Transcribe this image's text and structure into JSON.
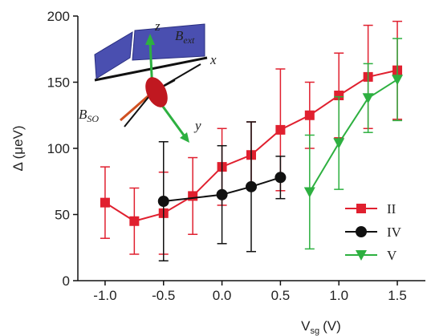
{
  "chart_data": {
    "type": "line",
    "x_label": [
      "V",
      "sg",
      "(V)"
    ],
    "y_label": "Δ (μeV)",
    "xlim": [
      -1.233,
      1.74
    ],
    "ylim": [
      0,
      200
    ],
    "xticks": [
      {
        "value": -1,
        "label": "-1.0"
      },
      {
        "value": -0.5,
        "label": "-0.5"
      },
      {
        "value": 0,
        "label": "0.0"
      },
      {
        "value": 0.5,
        "label": "0.5"
      },
      {
        "value": 1,
        "label": "1.0"
      },
      {
        "value": 1.5,
        "label": "1.5"
      }
    ],
    "yticks": [
      0,
      50,
      100,
      150,
      200
    ],
    "legend": "lower right",
    "series": [
      {
        "name": "II",
        "color": "#e0202f",
        "marker": "square",
        "x": [
          -1,
          -0.75,
          -0.5,
          -0.25,
          0,
          0.25,
          0.5,
          0.75,
          1,
          1.25,
          1.5
        ],
        "values": [
          59,
          45,
          51,
          64,
          86,
          95,
          114,
          125,
          140,
          154,
          159
        ],
        "errors": [
          27,
          25,
          31,
          29,
          29,
          25,
          46,
          25,
          32,
          39,
          37
        ]
      },
      {
        "name": "IV",
        "color": "#111111",
        "marker": "circle",
        "x": [
          -0.5,
          0,
          0.25,
          0.5
        ],
        "values": [
          60,
          65,
          71,
          78
        ],
        "errors": [
          45,
          37,
          49,
          16
        ]
      },
      {
        "name": "V",
        "color": "#2db040",
        "marker": "triangle-down",
        "x": [
          0.75,
          1,
          1.25,
          1.5
        ],
        "values": [
          67,
          104,
          138,
          152
        ],
        "errors": [
          43,
          35,
          26,
          31
        ]
      }
    ],
    "annotations": [
      {
        "text": "z"
      },
      {
        "text": "B",
        "sub": "ext"
      },
      {
        "text": "x"
      },
      {
        "text": "B",
        "sub": "SO"
      },
      {
        "text": "y"
      }
    ]
  }
}
